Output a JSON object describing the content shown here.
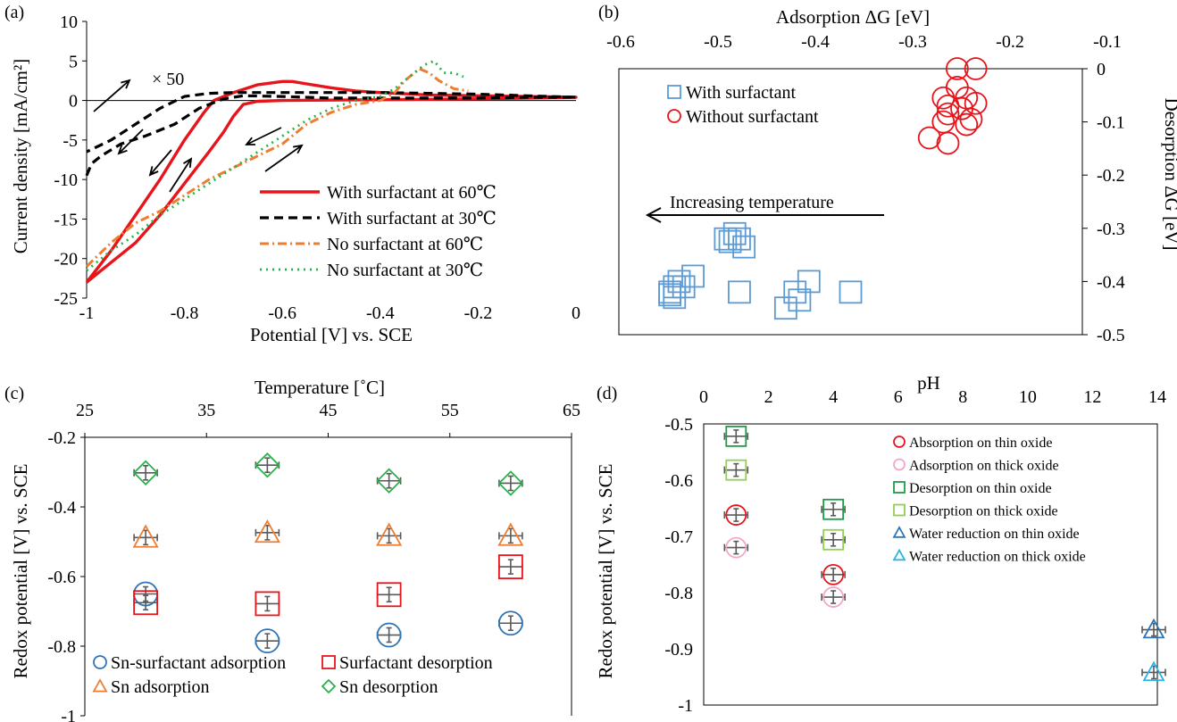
{
  "colors": {
    "red": "#e8141b",
    "black": "#000000",
    "orange": "#ed7d31",
    "green": "#2ab14c",
    "blue": "#5b9bd5",
    "darkblue": "#2e75b6",
    "pink": "#f4a6c8",
    "lightgreen": "#92d050",
    "cyan": "#2ab3e6",
    "dkgreen": "#1f9b47",
    "err": "#595959"
  },
  "chart_data": [
    {
      "type": "line",
      "panel_label": "(a)",
      "xlabel": "Potential [V] vs. SCE",
      "ylabel": "Current density [mA/cm²]",
      "xlim": [
        -1,
        0
      ],
      "ylim": [
        -25,
        10
      ],
      "x_ticks": [
        {
          "v": -1,
          "l": "-1"
        },
        {
          "v": -0.8,
          "l": "-0.8"
        },
        {
          "v": -0.6,
          "l": "-0.6"
        },
        {
          "v": -0.4,
          "l": "-0.4"
        },
        {
          "v": -0.2,
          "l": "-0.2"
        },
        {
          "v": 0,
          "l": "0"
        }
      ],
      "y_ticks": [
        {
          "v": 10,
          "l": "10"
        },
        {
          "v": 5,
          "l": "5"
        },
        {
          "v": 0,
          "l": "0"
        },
        {
          "v": -5,
          "l": "-5"
        },
        {
          "v": -10,
          "l": "-10"
        },
        {
          "v": -15,
          "l": "-15"
        },
        {
          "v": -20,
          "l": "-20"
        },
        {
          "v": -25,
          "l": "-25"
        }
      ],
      "annotation": "× 50",
      "series": [
        {
          "name": "With surfactant at 60℃",
          "color": "#e8141b",
          "style": "solid",
          "x": [
            -1,
            -0.95,
            -0.9,
            -0.85,
            -0.8,
            -0.76,
            -0.74,
            -0.7,
            -0.65,
            -0.6,
            -0.58,
            -0.55,
            -0.5,
            -0.45,
            -0.4,
            -0.3,
            -0.2,
            -0.1,
            0,
            -0.1,
            -0.2,
            -0.4,
            -0.6,
            -0.65,
            -0.68,
            -0.7,
            -0.72,
            -0.75,
            -0.8,
            -0.85,
            -0.9,
            -0.95,
            -1
          ],
          "y": [
            -23,
            -19,
            -14.5,
            -10,
            -5,
            -1.5,
            0,
            1,
            2,
            2.4,
            2.4,
            2.1,
            1.6,
            1.2,
            1,
            0.7,
            0.6,
            0.5,
            0.4,
            0.3,
            0.2,
            0.1,
            0,
            -0.1,
            -0.5,
            -2,
            -4,
            -6.5,
            -10.5,
            -14.5,
            -18,
            -20.5,
            -23
          ]
        },
        {
          "name": "With surfactant at 30℃",
          "color": "#000000",
          "style": "dash",
          "x": [
            -1,
            -0.99,
            -0.97,
            -0.93,
            -0.88,
            -0.82,
            -0.77,
            -0.72,
            -0.68,
            -0.6,
            -0.5,
            -0.4,
            -0.3,
            -0.2,
            -0.1,
            0,
            -0.1,
            -0.2,
            -0.3,
            -0.4,
            -0.5,
            -0.6,
            -0.7,
            -0.75,
            -0.8,
            -0.85,
            -0.9,
            -0.95,
            -1
          ],
          "y": [
            -9.5,
            -8,
            -7,
            -5.5,
            -4.5,
            -3,
            -1,
            0.2,
            0.6,
            0.5,
            0.3,
            0.3,
            0.3,
            0.3,
            0.4,
            0.4,
            0.6,
            0.8,
            0.9,
            1,
            1,
            1,
            1,
            0.9,
            0.5,
            -1,
            -3,
            -5,
            -6.5
          ]
        },
        {
          "name": "No surfactant at 60℃",
          "color": "#ed7d31",
          "style": "dashdot",
          "x": [
            -1,
            -0.95,
            -0.9,
            -0.85,
            -0.8,
            -0.75,
            -0.7,
            -0.65,
            -0.6,
            -0.55,
            -0.5,
            -0.45,
            -0.4,
            -0.37,
            -0.35,
            -0.32,
            -0.3,
            -0.28,
            -0.25,
            -0.22
          ],
          "y": [
            -21,
            -18,
            -15.5,
            -14,
            -12,
            -10,
            -8.5,
            -7,
            -5.5,
            -3,
            -1.5,
            -0.5,
            0,
            1,
            2.5,
            4,
            3.5,
            2.5,
            1.5,
            1.2
          ]
        },
        {
          "name": "No surfactant at 30℃",
          "color": "#2ab14c",
          "style": "dot",
          "x": [
            -1,
            -0.95,
            -0.9,
            -0.85,
            -0.8,
            -0.75,
            -0.7,
            -0.65,
            -0.6,
            -0.55,
            -0.5,
            -0.45,
            -0.4,
            -0.37,
            -0.34,
            -0.31,
            -0.29,
            -0.27,
            -0.25,
            -0.23
          ],
          "y": [
            -21.5,
            -19,
            -17,
            -14.5,
            -12.5,
            -10.5,
            -8.5,
            -6.5,
            -4.5,
            -2.5,
            -1,
            0,
            0.5,
            1.5,
            3,
            4.5,
            5,
            3.5,
            3.5,
            3
          ]
        }
      ]
    },
    {
      "type": "scatter",
      "panel_label": "(b)",
      "xlabel": "Adsorption ΔG [eV]",
      "ylabel": "Desorption ΔG [eV]",
      "xlim": [
        -0.6,
        -0.1
      ],
      "ylim": [
        -0.5,
        0
      ],
      "x_ticks": [
        {
          "v": -0.6,
          "l": "-0.6"
        },
        {
          "v": -0.5,
          "l": "-0.5"
        },
        {
          "v": -0.4,
          "l": "-0.4"
        },
        {
          "v": -0.3,
          "l": "-0.3"
        },
        {
          "v": -0.2,
          "l": "-0.2"
        },
        {
          "v": -0.1,
          "l": "-0.1"
        }
      ],
      "y_ticks": [
        {
          "v": 0,
          "l": "0"
        },
        {
          "v": -0.1,
          "l": "-0.1"
        },
        {
          "v": -0.2,
          "l": "-0.2"
        },
        {
          "v": -0.3,
          "l": "-0.3"
        },
        {
          "v": -0.4,
          "l": "-0.4"
        },
        {
          "v": -0.5,
          "l": "-0.5"
        }
      ],
      "annotation": "Increasing temperature",
      "series": [
        {
          "name": "With surfactant",
          "color": "#5b9bd5",
          "marker": "square",
          "points": [
            [
              -0.475,
              -0.31
            ],
            [
              -0.48,
              -0.325
            ],
            [
              -0.485,
              -0.32
            ],
            [
              -0.47,
              -0.32
            ],
            [
              -0.465,
              -0.335
            ],
            [
              -0.535,
              -0.4
            ],
            [
              -0.54,
              -0.41
            ],
            [
              -0.545,
              -0.425
            ],
            [
              -0.54,
              -0.43
            ],
            [
              -0.545,
              -0.42
            ],
            [
              -0.53,
              -0.41
            ],
            [
              -0.52,
              -0.39
            ],
            [
              -0.47,
              -0.42
            ],
            [
              -0.41,
              -0.42
            ],
            [
              -0.395,
              -0.4
            ],
            [
              -0.405,
              -0.435
            ],
            [
              -0.42,
              -0.45
            ],
            [
              -0.35,
              -0.42
            ]
          ]
        },
        {
          "name": "Without surfactant",
          "color": "#e8141b",
          "marker": "circle",
          "points": [
            [
              -0.235,
              0
            ],
            [
              -0.215,
              0
            ],
            [
              -0.235,
              -0.035
            ],
            [
              -0.225,
              -0.055
            ],
            [
              -0.25,
              -0.055
            ],
            [
              -0.245,
              -0.07
            ],
            [
              -0.245,
              -0.085
            ],
            [
              -0.23,
              -0.075
            ],
            [
              -0.215,
              -0.065
            ],
            [
              -0.22,
              -0.095
            ],
            [
              -0.225,
              -0.105
            ],
            [
              -0.25,
              -0.1
            ],
            [
              -0.265,
              -0.13
            ],
            [
              -0.245,
              -0.14
            ]
          ]
        }
      ]
    },
    {
      "type": "scatter",
      "panel_label": "(c)",
      "xlabel": "Temperature [˚C]",
      "ylabel": "Redox potential [V] vs. SCE",
      "xlim": [
        25,
        65
      ],
      "ylim": [
        -1,
        -0.2
      ],
      "x_ticks": [
        {
          "v": 25,
          "l": "25"
        },
        {
          "v": 35,
          "l": "35"
        },
        {
          "v": 45,
          "l": "45"
        },
        {
          "v": 55,
          "l": "55"
        },
        {
          "v": 65,
          "l": "65"
        }
      ],
      "y_ticks": [
        {
          "v": -0.2,
          "l": "-0.2"
        },
        {
          "v": -0.4,
          "l": "-0.4"
        },
        {
          "v": -0.6,
          "l": "-0.6"
        },
        {
          "v": -0.8,
          "l": "-0.8"
        },
        {
          "v": -1,
          "l": "-1"
        }
      ],
      "series": [
        {
          "name": "Sn-surfactant adsorption",
          "color": "#2e75b6",
          "marker": "circle",
          "x": [
            30,
            40,
            50,
            60
          ],
          "y": [
            -0.65,
            -0.785,
            -0.768,
            -0.734
          ]
        },
        {
          "name": "Surfactant desorption",
          "color": "#e8141b",
          "marker": "square",
          "x": [
            30,
            40,
            50,
            60
          ],
          "y": [
            -0.675,
            -0.678,
            -0.652,
            -0.572
          ]
        },
        {
          "name": "Sn adsorption",
          "color": "#ed7d31",
          "marker": "triangle",
          "x": [
            30,
            40,
            50,
            60
          ],
          "y": [
            -0.488,
            -0.474,
            -0.483,
            -0.483
          ]
        },
        {
          "name": "Sn desorption",
          "color": "#2ab14c",
          "marker": "diamond",
          "x": [
            30,
            40,
            50,
            60
          ],
          "y": [
            -0.302,
            -0.28,
            -0.325,
            -0.332
          ]
        }
      ]
    },
    {
      "type": "scatter",
      "panel_label": "(d)",
      "xlabel": "pH",
      "ylabel": "Redox potential [V] vs. SCE",
      "xlim": [
        0,
        14
      ],
      "ylim": [
        -1,
        -0.5
      ],
      "x_ticks": [
        {
          "v": 0,
          "l": "0"
        },
        {
          "v": 2,
          "l": "2"
        },
        {
          "v": 4,
          "l": "4"
        },
        {
          "v": 6,
          "l": "6"
        },
        {
          "v": 8,
          "l": "8"
        },
        {
          "v": 10,
          "l": "10"
        },
        {
          "v": 12,
          "l": "12"
        },
        {
          "v": 14,
          "l": "14"
        }
      ],
      "y_ticks": [
        {
          "v": -0.5,
          "l": "-0.5"
        },
        {
          "v": -0.6,
          "l": "-0.6"
        },
        {
          "v": -0.7,
          "l": "-0.7"
        },
        {
          "v": -0.8,
          "l": "-0.8"
        },
        {
          "v": -0.9,
          "l": "-0.9"
        },
        {
          "v": -1,
          "l": "-1"
        }
      ],
      "series": [
        {
          "name": "Absorption on thin oxide",
          "color": "#e8141b",
          "marker": "circle",
          "x": [
            1,
            4
          ],
          "y": [
            -0.662,
            -0.768
          ]
        },
        {
          "name": "Adsorption on thick oxide",
          "color": "#f4a6c8",
          "marker": "circle",
          "x": [
            1,
            4
          ],
          "y": [
            -0.72,
            -0.808
          ]
        },
        {
          "name": "Desorption on thin oxide",
          "color": "#1f9b47",
          "marker": "square",
          "x": [
            1,
            4
          ],
          "y": [
            -0.522,
            -0.652
          ]
        },
        {
          "name": "Desorption on thick oxide",
          "color": "#92d050",
          "marker": "square",
          "x": [
            1,
            4
          ],
          "y": [
            -0.582,
            -0.706
          ]
        },
        {
          "name": "Water reduction on thin oxide",
          "color": "#2e75b6",
          "marker": "triangle",
          "x": [
            14
          ],
          "y": [
            -0.866
          ]
        },
        {
          "name": "Water reduction on thick oxide",
          "color": "#2ab3e6",
          "marker": "triangle",
          "x": [
            14
          ],
          "y": [
            -0.942
          ]
        }
      ]
    }
  ]
}
